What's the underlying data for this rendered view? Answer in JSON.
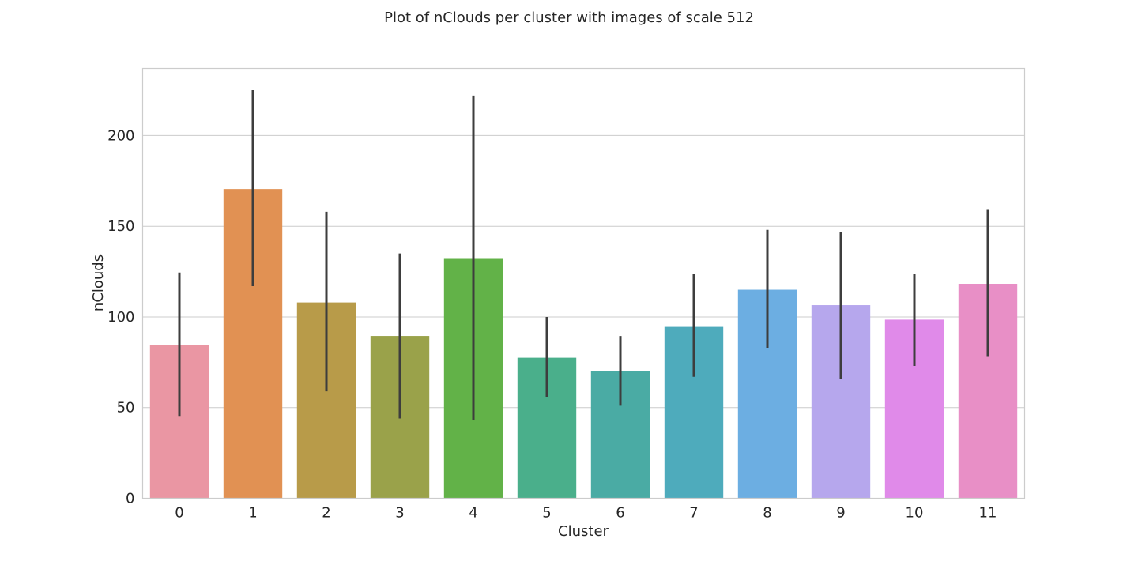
{
  "chart_data": {
    "type": "bar",
    "title": "Plot of nClouds per cluster with images of scale 512",
    "xlabel": "Cluster",
    "ylabel": "nClouds",
    "categories": [
      "0",
      "1",
      "2",
      "3",
      "4",
      "5",
      "6",
      "7",
      "8",
      "9",
      "10",
      "11"
    ],
    "values": [
      84.5,
      170.5,
      108,
      89.5,
      132,
      77.5,
      70,
      94.5,
      115,
      106.5,
      98.5,
      118
    ],
    "error_low": [
      45,
      117,
      59,
      44,
      43,
      56,
      51,
      67,
      83,
      66,
      73,
      78
    ],
    "error_high": [
      124.5,
      225,
      158,
      135,
      222,
      100,
      89.5,
      123.5,
      148,
      147,
      123.5,
      159
    ],
    "colors": [
      "#ea96a3",
      "#e19153",
      "#b89b49",
      "#9aa24a",
      "#62b248",
      "#4aaf8b",
      "#4aaba4",
      "#4eabbc",
      "#6caee2",
      "#b6a7ed",
      "#e08ae9",
      "#e88fc6"
    ],
    "ylim": [
      0,
      237
    ],
    "yticks": [
      0,
      50,
      100,
      150,
      200
    ],
    "grid": "horizontal",
    "style": "whitegrid"
  }
}
